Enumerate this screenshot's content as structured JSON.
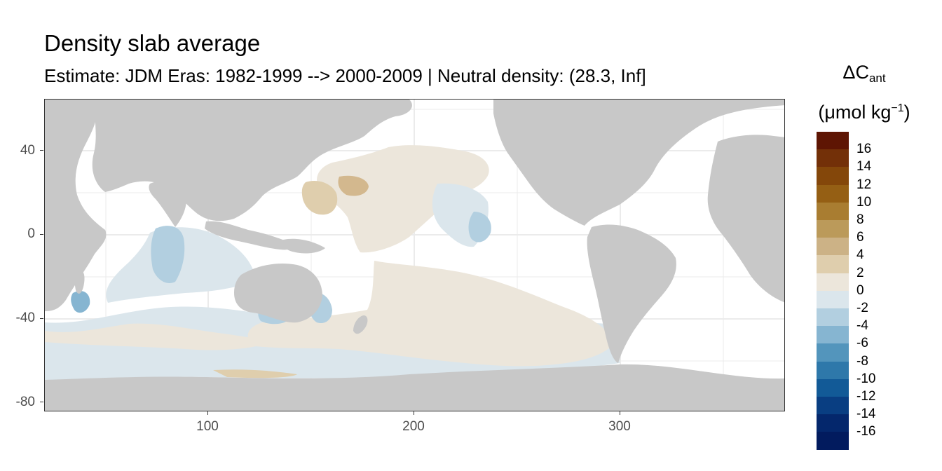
{
  "title": "Density slab average",
  "subtitle": "Estimate: JDM Eras: 1982-1999 --> 2000-2009 | Neutral density: (28.3, Inf]",
  "axes": {
    "x_ticks": [
      "100",
      "200",
      "300"
    ],
    "y_ticks": [
      "40",
      "0",
      "-40",
      "-80"
    ],
    "x_range": [
      20,
      380
    ],
    "y_range": [
      -85,
      65
    ]
  },
  "legend": {
    "title_symbol": "ΔC",
    "title_sub": "ant",
    "unit_main": "(μmol kg",
    "unit_sup": "−1",
    "unit_end": ")",
    "labels": [
      "16",
      "14",
      "12",
      "10",
      "8",
      "6",
      "4",
      "2",
      "0",
      "-2",
      "-4",
      "-6",
      "-8",
      "-10",
      "-12",
      "-14",
      "-16"
    ],
    "colors": [
      "#5e1503",
      "#733008",
      "#84470a",
      "#955f14",
      "#a97d31",
      "#bb9a5a",
      "#ccb286",
      "#dfcead",
      "#ece6db",
      "#dbe6ec",
      "#b2cfe0",
      "#86b5d1",
      "#5395bc",
      "#2e78aa",
      "#125a97",
      "#093e82",
      "#04276c",
      "#021b5e"
    ]
  },
  "colors": {
    "land": "#c8c8c8",
    "ocean_empty": "#ffffff",
    "grid": "#ebebeb",
    "pos_light": "#ece6db",
    "pos_medium": "#dfcead",
    "pos_strong": "#d3b88e",
    "neg_light": "#dbe6ec",
    "neg_medium": "#b2cfe0",
    "neg_strong": "#86b5d1",
    "neg_deep": "#5395bc"
  }
}
